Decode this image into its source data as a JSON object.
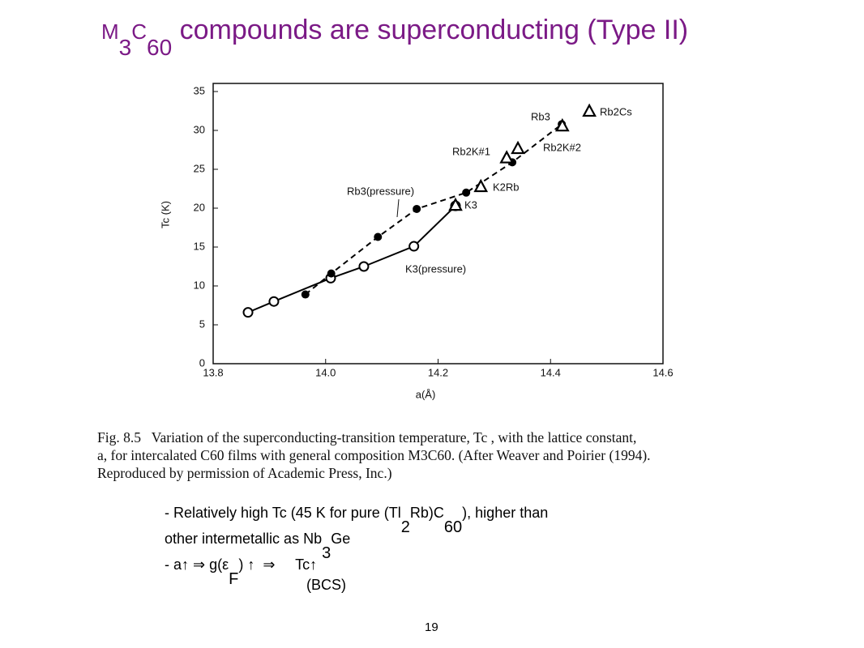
{
  "slide": {
    "title": [
      "M",
      "3",
      "C",
      "60",
      " compounds are superconducting (Type II)"
    ],
    "caption": [
      "Fig. 8.5   Variation of the superconducting-transition temperature, Tc , with the lattice constant,",
      "a, for intercalated C60 films with general composition M3C60. (After Weaver and Poirier (1994).",
      "Reproduced by permission of Academic Press, Inc.)"
    ],
    "bullets": [
      [
        "- Relatively high Tc (45 K for pure (Tl",
        "2",
        "Rb)C",
        "60",
        "), higher than"
      ],
      [
        "other intermetallic as Nb",
        "3",
        "Ge"
      ],
      [
        "- a↑ ⇒ g(ε",
        "F",
        ") ↑  ⇒     Tc↑"
      ],
      [
        "(BCS)"
      ]
    ],
    "page_number": "19"
  },
  "chart_data": {
    "type": "line",
    "xlabel": "a(Å)",
    "ylabel": "Tc (K)",
    "xlim": [
      13.8,
      14.6
    ],
    "xticks": [
      13.8,
      {
        "value": 14,
        "label": "14.0"
      },
      14.2,
      14.4,
      14.6
    ],
    "ylim": [
      0,
      35
    ],
    "yticks": [
      0,
      5,
      10,
      15,
      20,
      25,
      30,
      35
    ],
    "series": [
      {
        "color": "#000000",
        "marker": "open-circle",
        "line": "solid",
        "x": [
          13.862,
          13.908,
          14.009,
          14.068,
          14.157,
          14.231
        ],
        "values": [
          6.6,
          8.0,
          11.0,
          12.5,
          15.1,
          20.3
        ]
      },
      {
        "color": "#000000",
        "marker": "filled-circle",
        "line": "dashed",
        "x": [
          13.964,
          14.01,
          14.093,
          14.162,
          14.25,
          14.332,
          14.42
        ],
        "values": [
          8.9,
          11.6,
          16.3,
          19.9,
          22.0,
          25.9,
          30.8
        ]
      },
      {
        "color": "#000000",
        "marker": "triangle",
        "line": "none",
        "x": [
          14.231,
          14.276,
          14.322,
          14.342,
          14.421,
          14.469
        ],
        "values": [
          20.3,
          22.7,
          26.4,
          27.6,
          30.5,
          32.4
        ]
      }
    ],
    "annotations": [
      "Rb3(pressure)",
      "K3(pressure)",
      "Rb3",
      "Rb2Cs",
      "Rb2K#1",
      "Rb2K#2",
      "K2Rb",
      "K3"
    ]
  }
}
